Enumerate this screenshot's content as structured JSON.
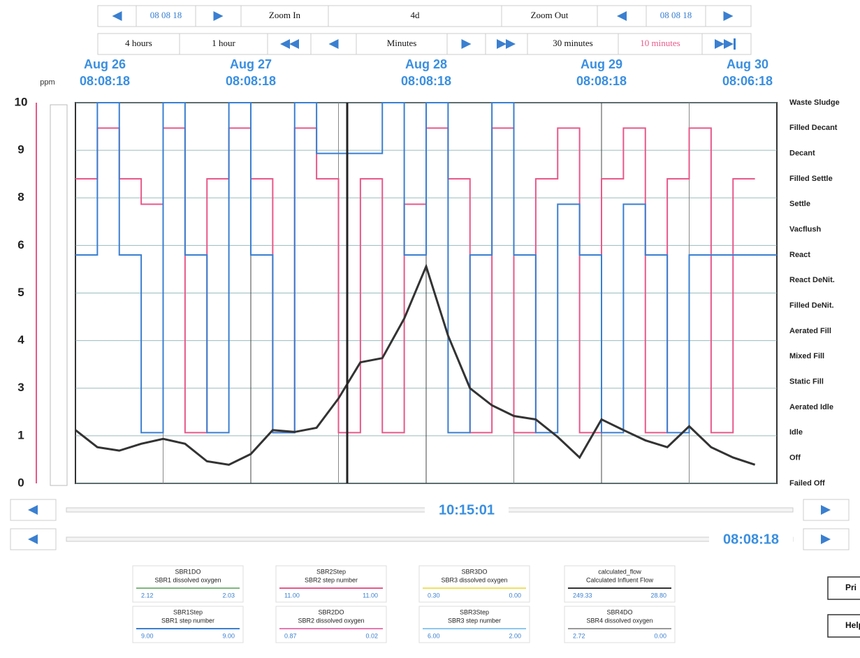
{
  "toolbar": {
    "row1": [
      "08 08 18",
      "Zoom In",
      "4d",
      "Zoom Out",
      "08 08 18"
    ],
    "row2": [
      "4 hours",
      "1 hour",
      "Minutes",
      "30 minutes",
      "10 minutes"
    ]
  },
  "chart_data": {
    "type": "line",
    "y_label": "ppm",
    "grid": true,
    "xlim": [
      0,
      96
    ],
    "xticks": [
      {
        "value": 0,
        "label": "Aug 26"
      },
      {
        "value": 24,
        "label": "Aug 27"
      },
      {
        "value": 48,
        "label": "Aug 28"
      },
      {
        "value": 72,
        "label": "Aug 29"
      },
      {
        "value": 96,
        "label": "Aug 30"
      }
    ],
    "xtick_times": [
      "08:08:18",
      "08:08:18",
      "08:08:18",
      "08:08:18",
      "08:06:18"
    ],
    "xminor": [
      12,
      36,
      60,
      84
    ],
    "ylim": [
      0,
      10
    ],
    "yticks": [
      0,
      {
        "value": 1.25,
        "label": "1"
      },
      {
        "value": 2.5,
        "label": "3"
      },
      {
        "value": 3.75,
        "label": "4"
      },
      5,
      {
        "value": 6.25,
        "label": "6"
      },
      {
        "value": 7.5,
        "label": "8"
      },
      {
        "value": 8.75,
        "label": "9"
      },
      10
    ],
    "y2lim": [
      0,
      15
    ],
    "y2ticks": [
      {
        "value": 15,
        "label": "Waste Sludge"
      },
      {
        "value": 14,
        "label": "Filled Decant"
      },
      {
        "value": 13,
        "label": "Decant"
      },
      {
        "value": 12,
        "label": "Filled Settle"
      },
      {
        "value": 11,
        "label": "Settle"
      },
      {
        "value": 10,
        "label": "Vacflush"
      },
      {
        "value": 9,
        "label": "React"
      },
      {
        "value": 8,
        "label": "React DeNit."
      },
      {
        "value": 7,
        "label": "Filled DeNit."
      },
      {
        "value": 6,
        "label": "Aerated Fill"
      },
      {
        "value": 5,
        "label": "Mixed Fill"
      },
      {
        "value": 4,
        "label": "Static Fill"
      },
      {
        "value": 3,
        "label": "Aerated Idle"
      },
      {
        "value": 2,
        "label": "Idle"
      },
      {
        "value": 1,
        "label": "Off"
      },
      {
        "value": 0,
        "label": "Failed Off"
      }
    ],
    "x": [
      0,
      3,
      6,
      9,
      12,
      15,
      18,
      21,
      24,
      27,
      30,
      33,
      36,
      39,
      42,
      45,
      48,
      51,
      54,
      57,
      60,
      63,
      66,
      69,
      72,
      75,
      78,
      81,
      84,
      87,
      90,
      93,
      96
    ],
    "series": [
      {
        "name": "SBR2Step",
        "color": "#e8588a",
        "axis": "y2",
        "step": true,
        "values": [
          12,
          14,
          12,
          11,
          14,
          2,
          12,
          14,
          12,
          2,
          14,
          12,
          2,
          12,
          2,
          11,
          14,
          12,
          2,
          14,
          2,
          12,
          14,
          2,
          12,
          14,
          2,
          12,
          14,
          2,
          12,
          12,
          null
        ]
      },
      {
        "name": "SBR1Step",
        "color": "#3a7fd0",
        "axis": "y2",
        "step": true,
        "values": [
          9,
          15,
          9,
          2,
          15,
          9,
          2,
          15,
          9,
          2,
          15,
          13,
          13,
          13,
          15,
          9,
          15,
          2,
          9,
          15,
          9,
          2,
          11,
          9,
          2,
          11,
          9,
          2,
          9,
          9,
          9,
          9,
          9
        ]
      },
      {
        "name": "calculated_flow",
        "color": "#333333",
        "axis": "y",
        "step": false,
        "values": [
          1.4,
          0.95,
          0.86,
          1.04,
          1.17,
          1.04,
          0.58,
          0.49,
          0.77,
          1.4,
          1.35,
          1.46,
          2.23,
          3.18,
          3.29,
          4.33,
          5.7,
          3.88,
          2.5,
          2.05,
          1.77,
          1.68,
          1.22,
          0.68,
          1.68,
          1.4,
          1.13,
          0.95,
          1.5,
          0.95,
          0.68,
          0.49,
          null
        ]
      }
    ]
  },
  "scrollbars": [
    "10:15:01",
    "08:08:18"
  ],
  "legend": [
    {
      "tag": "SBR1DO",
      "description": "SBR1 dissolved oxygen",
      "color": "#7fb77f",
      "values": [
        "2.12",
        "2.03"
      ]
    },
    {
      "tag": "SBR2Step",
      "description": "SBR2 step number",
      "color": "#e8588a",
      "values": [
        "11.00",
        "11.00"
      ]
    },
    {
      "tag": "SBR3DO",
      "description": "SBR3 dissolved oxygen",
      "color": "#f0e060",
      "values": [
        "0.30",
        "0.00"
      ]
    },
    {
      "tag": "calculated_flow",
      "description": "Calculated Influent Flow",
      "color": "#333333",
      "values": [
        "249.33",
        "28.80"
      ]
    },
    {
      "tag": "SBR1Step",
      "description": "SBR1 step number",
      "color": "#3a7fd0",
      "values": [
        "9.00",
        "9.00"
      ]
    },
    {
      "tag": "SBR2DO",
      "description": "SBR2 dissolved oxygen",
      "color": "#e878b0",
      "values": [
        "0.87",
        "0.02"
      ]
    },
    {
      "tag": "SBR3Step",
      "description": "SBR3 step number",
      "color": "#8cc8f0",
      "values": [
        "6.00",
        "2.00"
      ]
    },
    {
      "tag": "SBR4DO",
      "description": "SBR4 dissolved oxygen",
      "color": "#999999",
      "values": [
        "2.72",
        "0.00"
      ]
    }
  ],
  "buttons": [
    "Pri",
    "Help"
  ]
}
